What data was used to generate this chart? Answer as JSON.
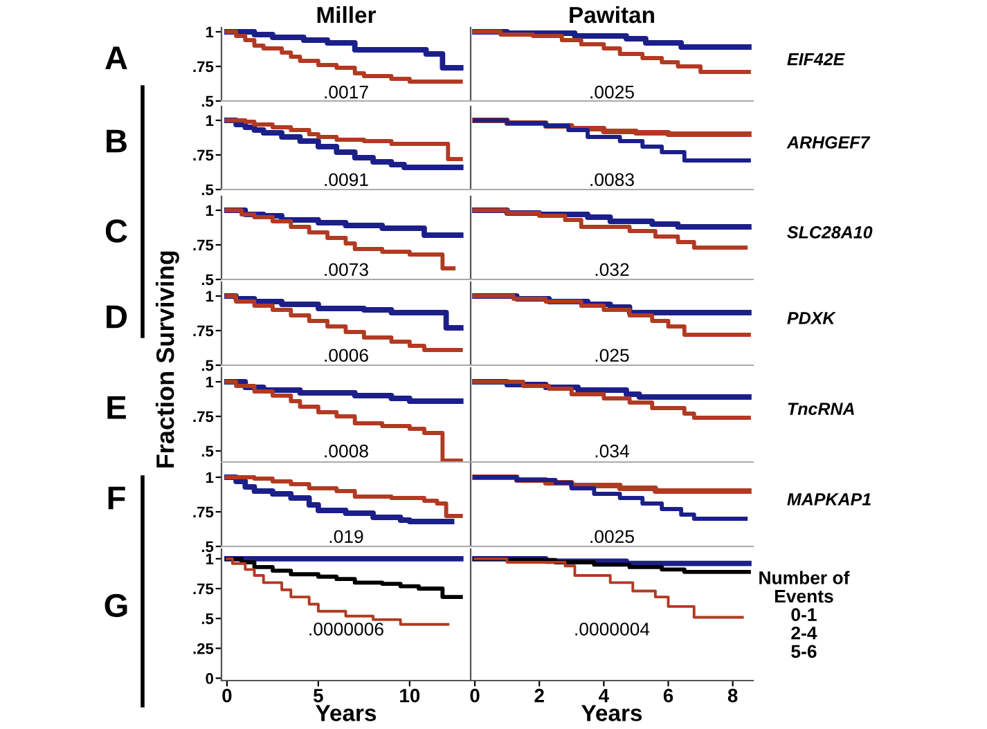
{
  "chart_data": [
    {
      "type": "step",
      "title": "Miller",
      "xlim": [
        -0.3,
        13.34
      ],
      "ylim": [
        0.5,
        1.03
      ],
      "yticks": [
        {
          "value": 0.5,
          "label": ".5"
        },
        {
          "value": 0.75,
          "label": ".75"
        },
        1
      ],
      "tick_labels": "y",
      "annotations": [
        "A",
        ".0017"
      ],
      "series": [
        {
          "color": "#1c1f8a",
          "x": [
            0,
            1.5,
            2.5,
            4.2,
            5.5,
            7,
            10.9,
            11.8,
            12.8
          ],
          "values": [
            1,
            0.98,
            0.96,
            0.94,
            0.92,
            0.87,
            0.84,
            0.74,
            0.74
          ]
        },
        {
          "color": "#b23a22",
          "x": [
            0,
            0.5,
            1,
            1.5,
            2,
            3,
            3.5,
            4,
            5,
            6,
            7,
            7.5,
            9,
            10,
            12.8
          ],
          "values": [
            1,
            0.97,
            0.94,
            0.9,
            0.88,
            0.85,
            0.82,
            0.79,
            0.76,
            0.74,
            0.7,
            0.68,
            0.66,
            0.64,
            0.64
          ]
        }
      ]
    },
    {
      "type": "step",
      "title": "Pawitan",
      "xlim": [
        -0.13,
        8.63
      ],
      "ylim": [
        0.5,
        1.03
      ],
      "tick_labels": false,
      "annotations": [
        ".0025",
        "EIF42E"
      ],
      "series": [
        {
          "color": "#1c1f8a",
          "x": [
            0,
            1,
            3.1,
            4.7,
            5.3,
            6.4,
            8.5
          ],
          "values": [
            1,
            0.99,
            0.97,
            0.95,
            0.92,
            0.89,
            0.89
          ]
        },
        {
          "color": "#b23a22",
          "x": [
            0,
            0.8,
            1.8,
            2.7,
            3.3,
            4,
            4.5,
            5.2,
            5.8,
            6.3,
            7,
            8.5
          ],
          "values": [
            1,
            0.98,
            0.97,
            0.94,
            0.91,
            0.88,
            0.84,
            0.81,
            0.78,
            0.75,
            0.71,
            0.71
          ]
        }
      ]
    },
    {
      "type": "step",
      "xlim": [
        -0.3,
        13.34
      ],
      "ylim": [
        0.5,
        1.1
      ],
      "yticks": [
        {
          "value": 0.5,
          "label": ".5"
        },
        {
          "value": 0.75,
          "label": ".75"
        },
        1
      ],
      "tick_labels": "y",
      "annotations": [
        "B",
        ".0091"
      ],
      "series": [
        {
          "color": "#1c1f8a",
          "x": [
            0,
            0.5,
            1,
            1.5,
            2,
            3,
            4,
            5,
            6,
            7,
            8,
            9,
            9.7,
            12.8
          ],
          "values": [
            1,
            0.97,
            0.95,
            0.93,
            0.91,
            0.88,
            0.85,
            0.81,
            0.77,
            0.73,
            0.7,
            0.68,
            0.66,
            0.66
          ]
        },
        {
          "color": "#b23a22",
          "x": [
            0,
            1,
            1.5,
            2.5,
            3.5,
            4.5,
            5,
            6,
            7.5,
            9,
            11.2,
            12.1,
            12.8
          ],
          "values": [
            1,
            0.99,
            0.97,
            0.95,
            0.93,
            0.9,
            0.88,
            0.86,
            0.85,
            0.83,
            0.83,
            0.72,
            0.72
          ]
        }
      ]
    },
    {
      "type": "step",
      "xlim": [
        -0.13,
        8.63
      ],
      "ylim": [
        0.5,
        1.1
      ],
      "tick_labels": false,
      "annotations": [
        ".0083",
        "ARHGEF7"
      ],
      "series": [
        {
          "color": "#b23a22",
          "x": [
            0,
            1,
            2.2,
            3,
            4,
            5,
            6,
            8.5
          ],
          "values": [
            1,
            0.98,
            0.96,
            0.94,
            0.92,
            0.91,
            0.9,
            0.9
          ]
        },
        {
          "color": "#1c1f8a",
          "x": [
            0,
            1,
            2.2,
            2.9,
            3.5,
            4.5,
            5.2,
            5.8,
            6.5,
            8.5
          ],
          "values": [
            1,
            0.98,
            0.96,
            0.93,
            0.88,
            0.85,
            0.81,
            0.77,
            0.71,
            0.71
          ]
        }
      ]
    },
    {
      "type": "step",
      "xlim": [
        -0.3,
        13.34
      ],
      "ylim": [
        0.5,
        1.1
      ],
      "yticks": [
        {
          "value": 0.5,
          "label": ".5"
        },
        {
          "value": 0.75,
          "label": ".75"
        },
        1
      ],
      "tick_labels": "y",
      "annotations": [
        "C",
        ".0073"
      ],
      "series": [
        {
          "color": "#1c1f8a",
          "x": [
            0,
            1,
            2,
            3,
            5,
            6.5,
            8.5,
            10.8,
            12.8
          ],
          "values": [
            1,
            0.97,
            0.96,
            0.93,
            0.91,
            0.89,
            0.87,
            0.82,
            0.82
          ]
        },
        {
          "color": "#b23a22",
          "x": [
            0,
            0.8,
            1.5,
            2.5,
            3.5,
            4.5,
            5.5,
            6.5,
            7,
            8.5,
            10,
            11.8,
            12.4
          ],
          "values": [
            1,
            0.97,
            0.95,
            0.92,
            0.88,
            0.84,
            0.8,
            0.76,
            0.72,
            0.7,
            0.68,
            0.58,
            0.58
          ]
        }
      ]
    },
    {
      "type": "step",
      "xlim": [
        -0.13,
        8.63
      ],
      "ylim": [
        0.5,
        1.1
      ],
      "tick_labels": false,
      "annotations": [
        ".032",
        "SLC28A10"
      ],
      "series": [
        {
          "color": "#1c1f8a",
          "x": [
            0,
            1,
            2,
            3.5,
            4.2,
            5.5,
            6.3,
            8.5
          ],
          "values": [
            1,
            0.98,
            0.97,
            0.95,
            0.92,
            0.9,
            0.88,
            0.88
          ]
        },
        {
          "color": "#b23a22",
          "x": [
            0,
            1,
            2,
            2.8,
            3.3,
            4.8,
            5.6,
            6.3,
            6.8,
            8.4
          ],
          "values": [
            1,
            0.98,
            0.96,
            0.93,
            0.88,
            0.85,
            0.81,
            0.77,
            0.73,
            0.73
          ]
        }
      ]
    },
    {
      "type": "step",
      "xlim": [
        -0.3,
        13.34
      ],
      "ylim": [
        0.5,
        1.1
      ],
      "yticks": [
        {
          "value": 0.5,
          "label": ".5"
        },
        {
          "value": 0.75,
          "label": ".75"
        },
        1
      ],
      "tick_labels": "y",
      "annotations": [
        "D",
        ".0006"
      ],
      "series": [
        {
          "color": "#1c1f8a",
          "x": [
            0,
            0.5,
            1.5,
            3,
            5,
            7.5,
            9,
            12,
            12.8
          ],
          "values": [
            1,
            0.98,
            0.96,
            0.94,
            0.91,
            0.9,
            0.88,
            0.77,
            0.77
          ]
        },
        {
          "color": "#b23a22",
          "x": [
            0,
            0.5,
            1.5,
            2.5,
            3.5,
            4.5,
            5.5,
            6.5,
            7.5,
            9,
            10,
            10.8,
            12.8
          ],
          "values": [
            1,
            0.96,
            0.93,
            0.9,
            0.86,
            0.82,
            0.78,
            0.74,
            0.7,
            0.67,
            0.64,
            0.61,
            0.61
          ]
        }
      ]
    },
    {
      "type": "step",
      "xlim": [
        -0.13,
        8.63
      ],
      "ylim": [
        0.5,
        1.1
      ],
      "tick_labels": false,
      "annotations": [
        ".025",
        "PDXK"
      ],
      "series": [
        {
          "color": "#1c1f8a",
          "x": [
            0,
            1.3,
            2.3,
            3.5,
            4.2,
            4.8,
            8.5
          ],
          "values": [
            1,
            0.98,
            0.96,
            0.94,
            0.92,
            0.88,
            0.88
          ]
        },
        {
          "color": "#b23a22",
          "x": [
            0,
            1.2,
            2.2,
            3.3,
            4,
            4.8,
            5.5,
            6,
            6.5,
            8.5
          ],
          "values": [
            1,
            0.98,
            0.96,
            0.93,
            0.9,
            0.86,
            0.82,
            0.78,
            0.72,
            0.72
          ]
        }
      ]
    },
    {
      "type": "step",
      "ylabel": "Fraction Surviving",
      "xlim": [
        -0.3,
        13.34
      ],
      "ylim": [
        0.42,
        1.1
      ],
      "yticks": [
        {
          "value": 0.5,
          "label": ".5"
        },
        {
          "value": 0.75,
          "label": ".75"
        },
        1
      ],
      "tick_labels": "y",
      "annotations": [
        "E",
        ".0008"
      ],
      "series": [
        {
          "color": "#1c1f8a",
          "x": [
            0,
            1,
            2,
            4,
            7,
            9,
            10,
            12.8
          ],
          "values": [
            1,
            0.96,
            0.94,
            0.92,
            0.9,
            0.88,
            0.86,
            0.86
          ]
        },
        {
          "color": "#b23a22",
          "x": [
            0,
            0.5,
            1.5,
            2.5,
            3.5,
            4,
            5,
            6,
            7,
            8.5,
            10,
            10.8,
            11.8,
            12.8
          ],
          "values": [
            1,
            0.97,
            0.93,
            0.9,
            0.86,
            0.82,
            0.78,
            0.75,
            0.7,
            0.68,
            0.66,
            0.63,
            0.43,
            0.43
          ]
        }
      ]
    },
    {
      "type": "step",
      "xlim": [
        -0.13,
        8.63
      ],
      "ylim": [
        0.42,
        1.1
      ],
      "tick_labels": false,
      "annotations": [
        ".034",
        "TncRNA"
      ],
      "series": [
        {
          "color": "#1c1f8a",
          "x": [
            0,
            1,
            2.2,
            3.2,
            4.7,
            5.1,
            8.5
          ],
          "values": [
            1,
            0.98,
            0.96,
            0.94,
            0.91,
            0.89,
            0.89
          ]
        },
        {
          "color": "#b23a22",
          "x": [
            0,
            1.5,
            2.3,
            3,
            4,
            4.8,
            5.5,
            6.5,
            6.8,
            8.5
          ],
          "values": [
            1,
            0.97,
            0.95,
            0.91,
            0.88,
            0.85,
            0.81,
            0.77,
            0.74,
            0.74
          ]
        }
      ]
    },
    {
      "type": "step",
      "xlim": [
        -0.3,
        13.34
      ],
      "ylim": [
        0.5,
        1.1
      ],
      "yticks": [
        {
          "value": 0.5,
          "label": ".5"
        },
        {
          "value": 0.75,
          "label": ".75"
        },
        1
      ],
      "tick_labels": "y",
      "annotations": [
        "F",
        ".019"
      ],
      "series": [
        {
          "color": "#1c1f8a",
          "x": [
            0,
            0.5,
            1,
            1.5,
            2.5,
            3.5,
            4.5,
            5,
            6.5,
            8,
            9.5,
            10,
            12.3
          ],
          "values": [
            1,
            0.97,
            0.93,
            0.9,
            0.88,
            0.85,
            0.8,
            0.76,
            0.74,
            0.71,
            0.69,
            0.68,
            0.68
          ]
        },
        {
          "color": "#b23a22",
          "x": [
            0,
            1.5,
            2.5,
            3.5,
            4.5,
            6,
            7,
            9,
            10.8,
            11.5,
            12,
            12.8
          ],
          "values": [
            1,
            0.99,
            0.97,
            0.95,
            0.92,
            0.9,
            0.86,
            0.85,
            0.83,
            0.81,
            0.72,
            0.72
          ]
        }
      ]
    },
    {
      "type": "step",
      "xlim": [
        -0.13,
        8.63
      ],
      "ylim": [
        0.5,
        1.1
      ],
      "tick_labels": false,
      "annotations": [
        ".0025",
        "MAPKAP1"
      ],
      "series": [
        {
          "color": "#b23a22",
          "x": [
            0,
            1.3,
            2.2,
            3,
            4.5,
            5.6,
            8.5
          ],
          "values": [
            1,
            0.98,
            0.96,
            0.94,
            0.92,
            0.9,
            0.9
          ]
        },
        {
          "color": "#1c1f8a",
          "x": [
            0,
            1.3,
            2.5,
            3,
            3.7,
            4.5,
            5.2,
            5.8,
            6.4,
            6.8,
            8.4
          ],
          "values": [
            1,
            0.98,
            0.96,
            0.92,
            0.88,
            0.85,
            0.81,
            0.77,
            0.73,
            0.7,
            0.7
          ]
        }
      ]
    },
    {
      "type": "step",
      "xlabel": "Years",
      "xlim": [
        -0.3,
        13.34
      ],
      "ylim": [
        -0.02,
        1.08
      ],
      "xticks": [
        0,
        5,
        10
      ],
      "yticks": [
        0,
        {
          "value": 0.25,
          "label": ".25"
        },
        {
          "value": 0.5,
          "label": ".5"
        },
        {
          "value": 0.75,
          "label": ".75"
        },
        1
      ],
      "annotations": [
        "G",
        ".0000006"
      ],
      "series": [
        {
          "color": "#1c1f8a",
          "x": [
            0,
            12.8
          ],
          "values": [
            1,
            1
          ]
        },
        {
          "color": "#000000",
          "x": [
            0,
            0.8,
            1.5,
            2.5,
            3.5,
            5,
            6,
            7,
            8.5,
            9.5,
            10.5,
            11.8,
            12.8
          ],
          "values": [
            1,
            0.97,
            0.93,
            0.9,
            0.87,
            0.85,
            0.83,
            0.8,
            0.79,
            0.77,
            0.75,
            0.68,
            0.68
          ]
        },
        {
          "color": "#b23a22",
          "x": [
            0,
            0.3,
            1,
            1.5,
            2,
            3,
            3.5,
            4.5,
            5,
            6.5,
            8,
            9.5,
            12.1
          ],
          "values": [
            1,
            0.96,
            0.91,
            0.86,
            0.8,
            0.74,
            0.68,
            0.62,
            0.56,
            0.52,
            0.49,
            0.45,
            0.45
          ]
        }
      ]
    },
    {
      "type": "step",
      "xlabel": "Years",
      "xlim": [
        -0.13,
        8.63
      ],
      "ylim": [
        -0.02,
        1.08
      ],
      "xticks": [
        0,
        2,
        4,
        6,
        8
      ],
      "tick_labels": "x",
      "annotations": [
        ".0000004",
        "Number of",
        "Events",
        "0-1",
        "2-4",
        "5-6"
      ],
      "series": [
        {
          "color": "#1c1f8a",
          "x": [
            0,
            2.2,
            4.7,
            8.5
          ],
          "values": [
            1,
            0.98,
            0.96,
            0.96
          ]
        },
        {
          "color": "#000000",
          "x": [
            0,
            1,
            2.5,
            3.7,
            4.8,
            5.8,
            6.5,
            8.5
          ],
          "values": [
            1,
            0.99,
            0.97,
            0.95,
            0.93,
            0.91,
            0.89,
            0.89
          ]
        },
        {
          "color": "#b23a22",
          "x": [
            0,
            1,
            2.8,
            3.1,
            4.2,
            4.9,
            5.6,
            6,
            6.8,
            8.3
          ],
          "values": [
            1,
            0.97,
            0.94,
            0.86,
            0.8,
            0.73,
            0.68,
            0.6,
            0.51,
            0.51
          ]
        }
      ]
    }
  ]
}
